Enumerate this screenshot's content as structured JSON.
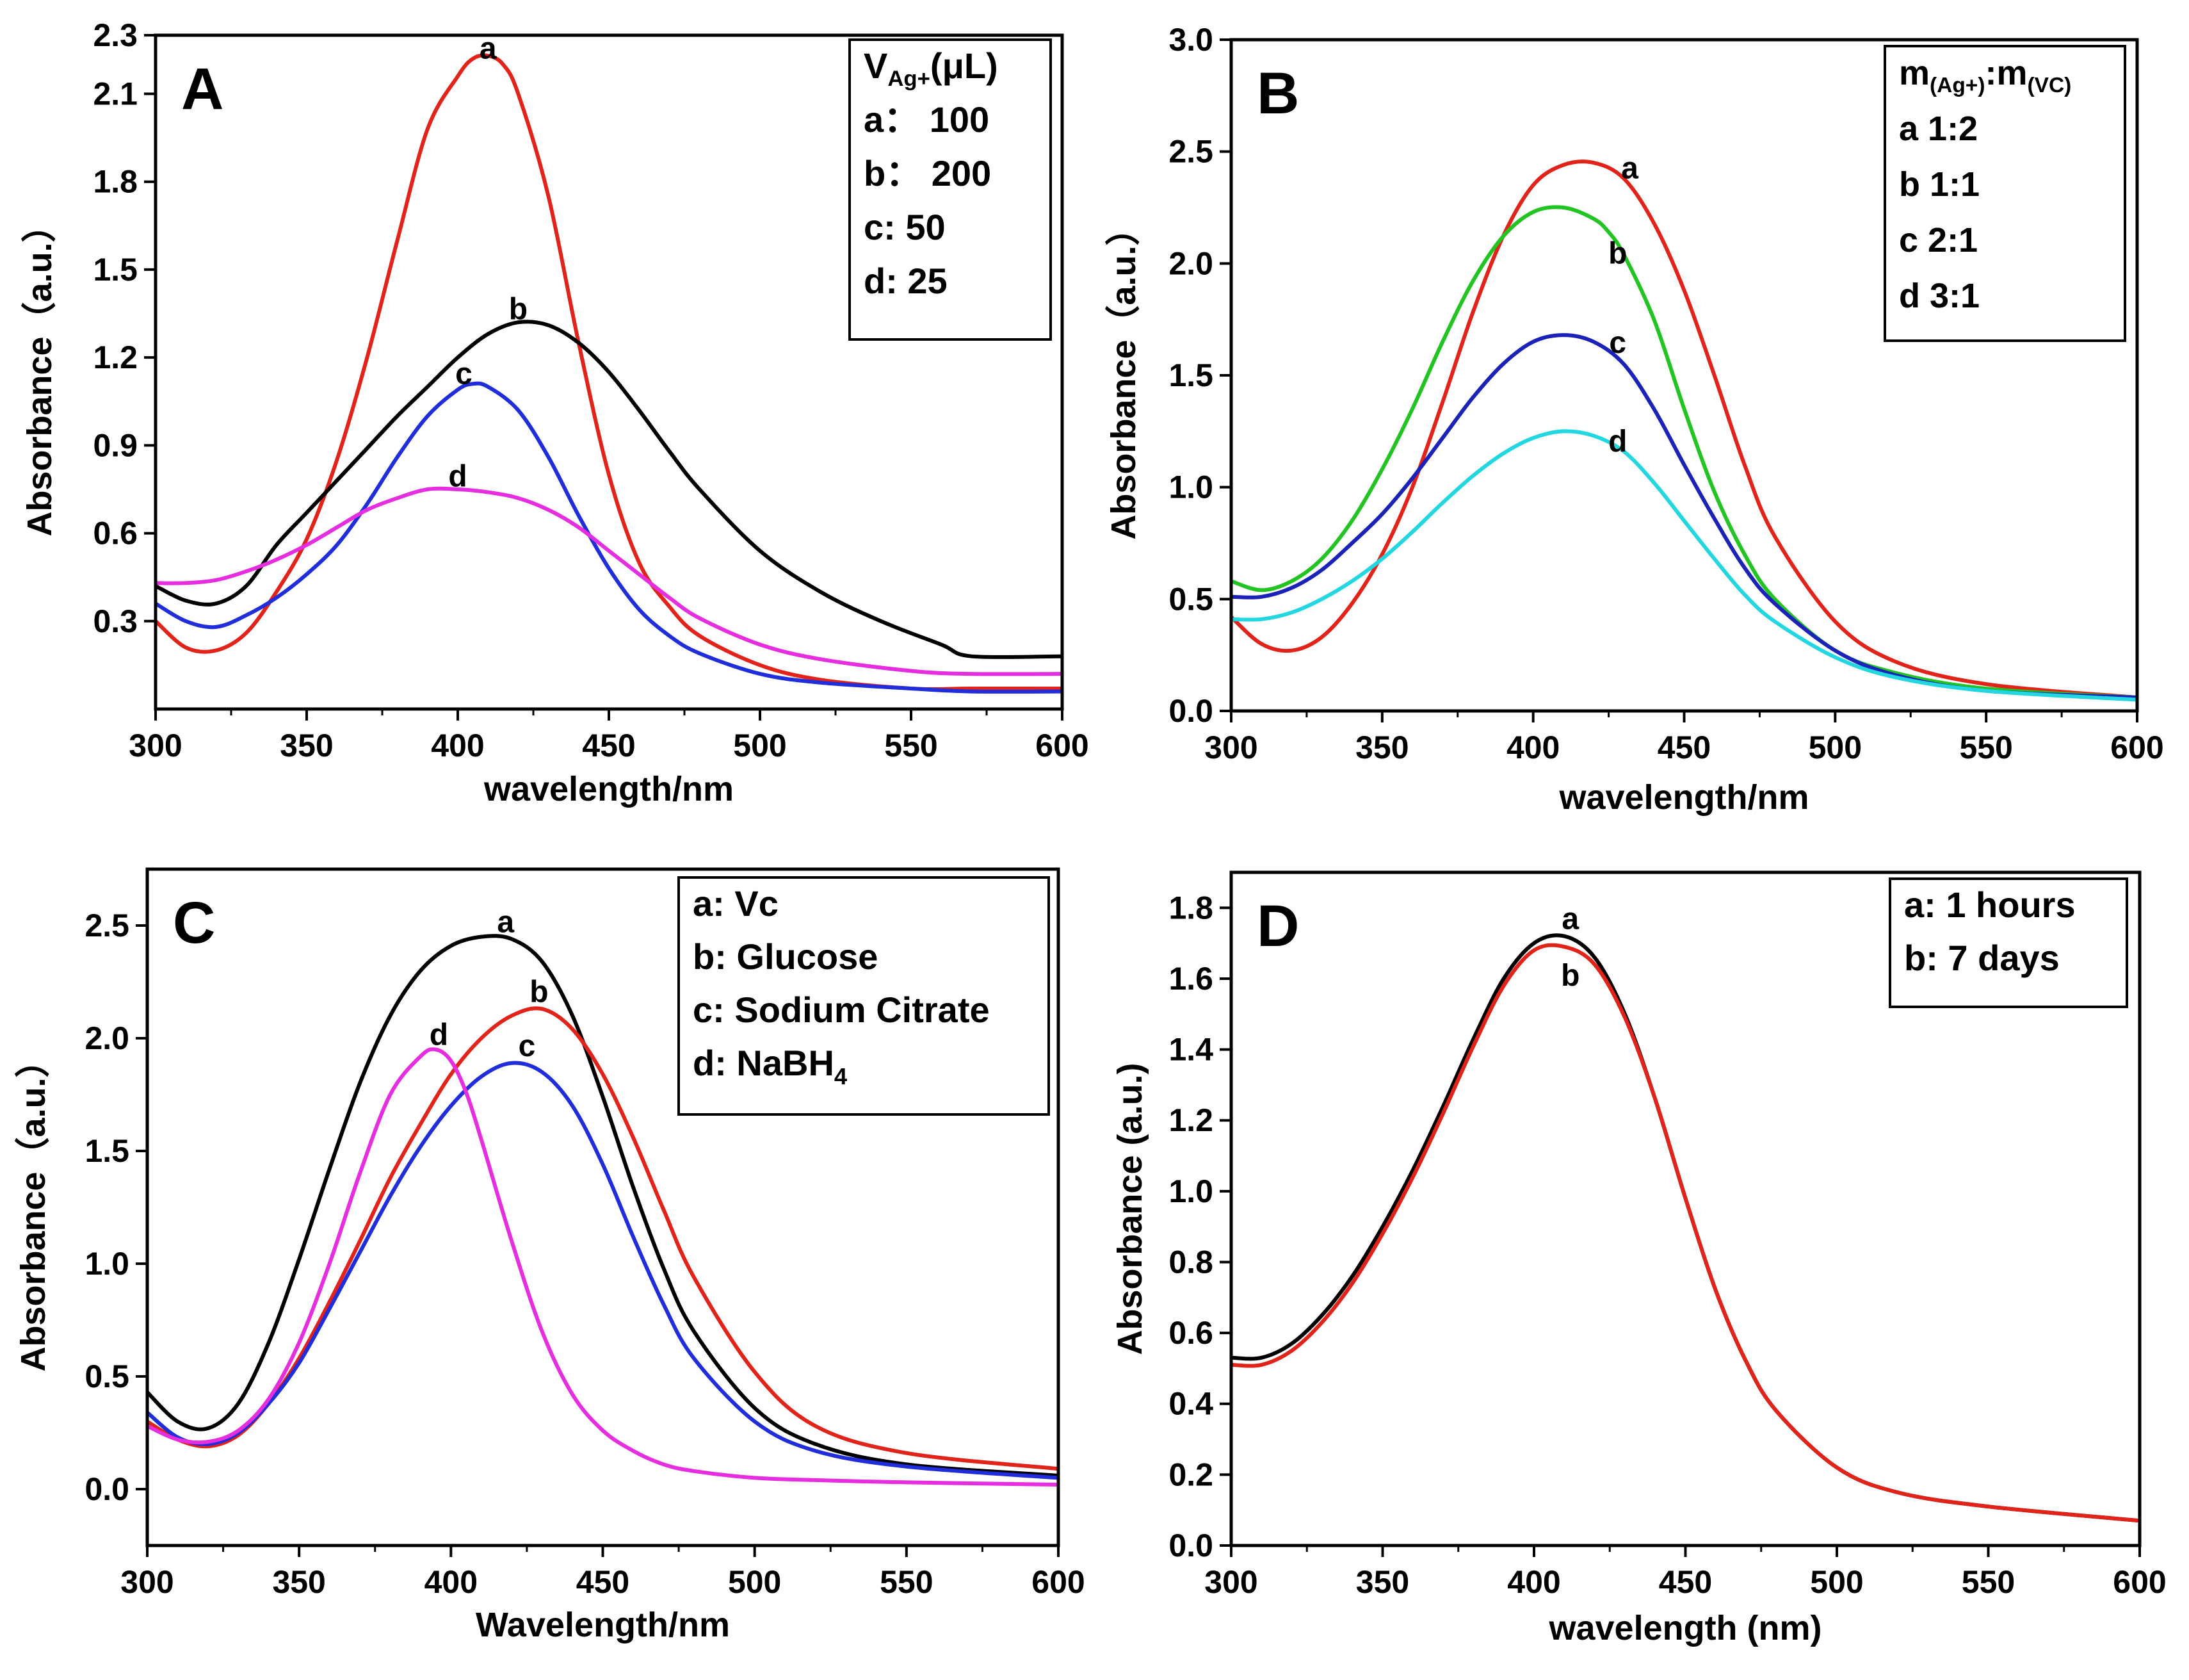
{
  "chart_data": [
    {
      "type": "line",
      "panel_label": "A",
      "xlabel": "wavelength/nm",
      "ylabel": "Absorbance（a.u.）",
      "xlim": [
        300,
        600
      ],
      "ylim": [
        0.0,
        2.3
      ],
      "xticks": [
        300,
        350,
        400,
        450,
        500,
        550,
        600
      ],
      "yticks": [
        0.3,
        0.6,
        0.9,
        1.2,
        1.5,
        1.8,
        2.1,
        2.3
      ],
      "ytick_labels": [
        "0.3",
        "0.6",
        "0.9",
        "1.2",
        "1.5",
        "1.8",
        "2.1",
        "2.3"
      ],
      "legend": {
        "title_main": "V",
        "title_sub": "Ag+",
        "title_rest": "(μL)",
        "entries": [
          "a：  100",
          "b：  200",
          "c:   50",
          "d:  25"
        ]
      },
      "series": [
        {
          "name": "a",
          "color": "#e2231a",
          "label_at": [
            410,
            2.22
          ],
          "x": [
            300,
            310,
            320,
            330,
            340,
            350,
            360,
            370,
            380,
            390,
            400,
            405,
            410,
            415,
            420,
            430,
            440,
            450,
            460,
            470,
            480,
            500,
            520,
            550,
            570,
            600
          ],
          "y": [
            0.3,
            0.21,
            0.2,
            0.26,
            0.4,
            0.58,
            0.85,
            1.2,
            1.6,
            1.98,
            2.16,
            2.22,
            2.23,
            2.2,
            2.1,
            1.75,
            1.25,
            0.8,
            0.5,
            0.35,
            0.25,
            0.15,
            0.1,
            0.07,
            0.07,
            0.07
          ]
        },
        {
          "name": "b",
          "color": "#000000",
          "label_at": [
            420,
            1.33
          ],
          "x": [
            300,
            310,
            320,
            330,
            340,
            350,
            360,
            370,
            380,
            390,
            400,
            410,
            420,
            430,
            440,
            450,
            460,
            470,
            480,
            500,
            520,
            540,
            560,
            570,
            600
          ],
          "y": [
            0.42,
            0.37,
            0.36,
            0.42,
            0.56,
            0.67,
            0.78,
            0.89,
            1.0,
            1.1,
            1.2,
            1.28,
            1.32,
            1.31,
            1.25,
            1.15,
            1.02,
            0.88,
            0.75,
            0.54,
            0.4,
            0.3,
            0.22,
            0.18,
            0.18
          ]
        },
        {
          "name": "c",
          "color": "#1f2ddb",
          "label_at": [
            402,
            1.11
          ],
          "x": [
            300,
            310,
            320,
            330,
            340,
            350,
            360,
            370,
            380,
            390,
            400,
            405,
            410,
            420,
            430,
            440,
            450,
            460,
            470,
            480,
            500,
            520,
            550,
            570,
            600
          ],
          "y": [
            0.36,
            0.3,
            0.28,
            0.32,
            0.38,
            0.46,
            0.56,
            0.7,
            0.86,
            1.0,
            1.09,
            1.11,
            1.1,
            1.02,
            0.86,
            0.66,
            0.48,
            0.34,
            0.25,
            0.19,
            0.12,
            0.09,
            0.07,
            0.06,
            0.06
          ]
        },
        {
          "name": "d",
          "color": "#e62ee0",
          "label_at": [
            400,
            0.76
          ],
          "x": [
            300,
            310,
            320,
            330,
            340,
            350,
            360,
            370,
            380,
            390,
            400,
            410,
            420,
            430,
            440,
            450,
            460,
            470,
            480,
            500,
            520,
            550,
            570,
            600
          ],
          "y": [
            0.43,
            0.43,
            0.44,
            0.47,
            0.51,
            0.56,
            0.62,
            0.68,
            0.72,
            0.75,
            0.75,
            0.74,
            0.72,
            0.68,
            0.62,
            0.54,
            0.46,
            0.38,
            0.31,
            0.22,
            0.17,
            0.13,
            0.12,
            0.12
          ]
        }
      ]
    },
    {
      "type": "line",
      "panel_label": "B",
      "xlabel": "wavelength/nm",
      "ylabel": "Absorbance（a.u.）",
      "xlim": [
        300,
        600
      ],
      "ylim": [
        0.0,
        3.0
      ],
      "xticks": [
        300,
        350,
        400,
        450,
        500,
        550,
        600
      ],
      "yticks": [
        0.0,
        0.5,
        1.0,
        1.5,
        2.0,
        2.5,
        3.0
      ],
      "ytick_labels": [
        "0.0",
        "0.5",
        "1.0",
        "1.5",
        "2.0",
        "2.5",
        "3.0"
      ],
      "legend": {
        "title_main": "m",
        "title_sub": "(Ag+)",
        "title_mid": ":m",
        "title_sub2": "(VC)",
        "entries": [
          "a     1:2",
          "b     1:1",
          "c     2:1",
          "d     3:1"
        ]
      },
      "series": [
        {
          "name": "a",
          "color": "#e2231a",
          "label_at": [
            432,
            2.38
          ],
          "x": [
            300,
            310,
            320,
            330,
            340,
            350,
            360,
            370,
            380,
            390,
            400,
            410,
            420,
            430,
            440,
            450,
            460,
            470,
            480,
            500,
            520,
            550,
            600
          ],
          "y": [
            0.42,
            0.3,
            0.27,
            0.33,
            0.48,
            0.7,
            1.0,
            1.38,
            1.78,
            2.12,
            2.35,
            2.44,
            2.45,
            2.38,
            2.18,
            1.88,
            1.5,
            1.1,
            0.78,
            0.4,
            0.22,
            0.12,
            0.06
          ]
        },
        {
          "name": "b",
          "color": "#22c422",
          "label_at": [
            428,
            2.0
          ],
          "x": [
            300,
            310,
            320,
            330,
            340,
            350,
            360,
            370,
            380,
            390,
            400,
            410,
            420,
            425,
            430,
            440,
            450,
            460,
            470,
            480,
            500,
            520,
            550,
            600
          ],
          "y": [
            0.58,
            0.54,
            0.58,
            0.68,
            0.85,
            1.08,
            1.35,
            1.65,
            1.92,
            2.12,
            2.23,
            2.25,
            2.2,
            2.14,
            2.04,
            1.75,
            1.35,
            0.98,
            0.7,
            0.5,
            0.27,
            0.17,
            0.1,
            0.06
          ]
        },
        {
          "name": "c",
          "color": "#1a22b8",
          "label_at": [
            428,
            1.6
          ],
          "x": [
            300,
            310,
            320,
            330,
            340,
            350,
            360,
            370,
            380,
            390,
            400,
            410,
            420,
            430,
            440,
            450,
            460,
            470,
            480,
            500,
            520,
            550,
            600
          ],
          "y": [
            0.51,
            0.51,
            0.55,
            0.63,
            0.75,
            0.88,
            1.04,
            1.22,
            1.4,
            1.55,
            1.65,
            1.68,
            1.65,
            1.55,
            1.35,
            1.1,
            0.86,
            0.64,
            0.48,
            0.27,
            0.16,
            0.09,
            0.06
          ]
        },
        {
          "name": "d",
          "color": "#22d7e0",
          "label_at": [
            428,
            1.16
          ],
          "x": [
            300,
            310,
            320,
            330,
            340,
            350,
            360,
            370,
            380,
            390,
            400,
            410,
            420,
            430,
            440,
            450,
            460,
            470,
            480,
            500,
            520,
            550,
            600
          ],
          "y": [
            0.41,
            0.41,
            0.44,
            0.5,
            0.58,
            0.68,
            0.8,
            0.93,
            1.05,
            1.15,
            1.22,
            1.25,
            1.23,
            1.16,
            1.02,
            0.85,
            0.68,
            0.52,
            0.4,
            0.24,
            0.15,
            0.09,
            0.05
          ]
        }
      ]
    },
    {
      "type": "line",
      "panel_label": "C",
      "xlabel": "Wavelength/nm",
      "ylabel": "Absorbance（a.u.）",
      "xlim": [
        300,
        600
      ],
      "ylim": [
        -0.25,
        2.75
      ],
      "xticks": [
        300,
        350,
        400,
        450,
        500,
        550,
        600
      ],
      "yticks": [
        0.0,
        0.5,
        1.0,
        1.5,
        2.0,
        2.5
      ],
      "ytick_labels": [
        "0.0",
        "0.5",
        "1.0",
        "1.5",
        "2.0",
        "2.5"
      ],
      "legend": {
        "entries": [
          "a:   Vc",
          "b: Glucose",
          "c: Sodium Citrate",
          "d: NaBH"
        ],
        "entry_d_sub": "4"
      },
      "series": [
        {
          "name": "a",
          "color": "#000000",
          "label_at": [
            418,
            2.47
          ],
          "x": [
            300,
            310,
            320,
            330,
            340,
            350,
            360,
            370,
            380,
            390,
            400,
            410,
            420,
            430,
            440,
            450,
            460,
            470,
            480,
            500,
            520,
            550,
            600
          ],
          "y": [
            0.43,
            0.3,
            0.27,
            0.38,
            0.65,
            1.02,
            1.42,
            1.8,
            2.1,
            2.3,
            2.41,
            2.45,
            2.44,
            2.34,
            2.1,
            1.74,
            1.34,
            0.98,
            0.7,
            0.36,
            0.2,
            0.11,
            0.06
          ]
        },
        {
          "name": "b",
          "color": "#e2231a",
          "label_at": [
            429,
            2.16
          ],
          "x": [
            300,
            310,
            320,
            330,
            340,
            350,
            360,
            370,
            380,
            390,
            400,
            410,
            420,
            430,
            440,
            450,
            460,
            470,
            480,
            500,
            520,
            550,
            600
          ],
          "y": [
            0.3,
            0.22,
            0.19,
            0.24,
            0.38,
            0.58,
            0.83,
            1.1,
            1.38,
            1.62,
            1.84,
            2.0,
            2.1,
            2.13,
            2.04,
            1.84,
            1.56,
            1.24,
            0.94,
            0.52,
            0.28,
            0.16,
            0.09
          ]
        },
        {
          "name": "c",
          "color": "#1f2ddb",
          "label_at": [
            425,
            1.92
          ],
          "x": [
            300,
            310,
            320,
            330,
            340,
            350,
            360,
            370,
            380,
            390,
            400,
            410,
            420,
            430,
            440,
            450,
            460,
            470,
            480,
            500,
            520,
            550,
            600
          ],
          "y": [
            0.34,
            0.23,
            0.2,
            0.25,
            0.38,
            0.56,
            0.8,
            1.05,
            1.3,
            1.52,
            1.7,
            1.83,
            1.89,
            1.85,
            1.7,
            1.44,
            1.12,
            0.82,
            0.58,
            0.3,
            0.17,
            0.1,
            0.05
          ]
        },
        {
          "name": "d",
          "color": "#e62ee0",
          "label_at": [
            396,
            1.97
          ],
          "x": [
            300,
            310,
            320,
            330,
            340,
            350,
            360,
            370,
            380,
            390,
            395,
            400,
            405,
            410,
            420,
            430,
            440,
            450,
            460,
            470,
            480,
            500,
            520,
            550,
            600
          ],
          "y": [
            0.28,
            0.22,
            0.21,
            0.26,
            0.4,
            0.65,
            1.0,
            1.4,
            1.75,
            1.92,
            1.95,
            1.9,
            1.76,
            1.55,
            1.1,
            0.7,
            0.42,
            0.26,
            0.17,
            0.11,
            0.08,
            0.05,
            0.04,
            0.03,
            0.02
          ]
        }
      ]
    },
    {
      "type": "line",
      "panel_label": "D",
      "xlabel": "wavelength (nm)",
      "ylabel": "Absorbance (a.u.)",
      "xlim": [
        300,
        600
      ],
      "ylim": [
        0.0,
        1.9
      ],
      "xticks": [
        300,
        350,
        400,
        450,
        500,
        550,
        600
      ],
      "yticks": [
        0.0,
        0.2,
        0.4,
        0.6,
        0.8,
        1.0,
        1.2,
        1.4,
        1.6,
        1.8
      ],
      "ytick_labels": [
        "0.0",
        "0.2",
        "0.4",
        "0.6",
        "0.8",
        "1.0",
        "1.2",
        "1.4",
        "1.6",
        "1.8"
      ],
      "legend": {
        "entries": [
          "a:  1 hours",
          "b:  7 days"
        ]
      },
      "series": [
        {
          "name": "a",
          "color": "#000000",
          "label_at": [
            412,
            1.74
          ],
          "x": [
            300,
            310,
            320,
            330,
            340,
            350,
            360,
            370,
            380,
            390,
            400,
            410,
            420,
            430,
            440,
            450,
            460,
            470,
            480,
            500,
            520,
            550,
            600
          ],
          "y": [
            0.53,
            0.53,
            0.57,
            0.65,
            0.76,
            0.9,
            1.06,
            1.24,
            1.43,
            1.6,
            1.7,
            1.72,
            1.66,
            1.5,
            1.26,
            0.98,
            0.72,
            0.52,
            0.38,
            0.22,
            0.15,
            0.11,
            0.07
          ]
        },
        {
          "name": "b",
          "color": "#e2231a",
          "label_at": [
            412,
            1.58
          ],
          "x": [
            300,
            310,
            320,
            330,
            340,
            350,
            360,
            370,
            380,
            390,
            400,
            410,
            420,
            430,
            440,
            450,
            460,
            470,
            480,
            500,
            520,
            550,
            600
          ],
          "y": [
            0.51,
            0.51,
            0.55,
            0.63,
            0.74,
            0.88,
            1.04,
            1.22,
            1.41,
            1.58,
            1.68,
            1.69,
            1.64,
            1.49,
            1.26,
            0.98,
            0.72,
            0.52,
            0.38,
            0.22,
            0.15,
            0.11,
            0.07
          ]
        }
      ]
    }
  ]
}
